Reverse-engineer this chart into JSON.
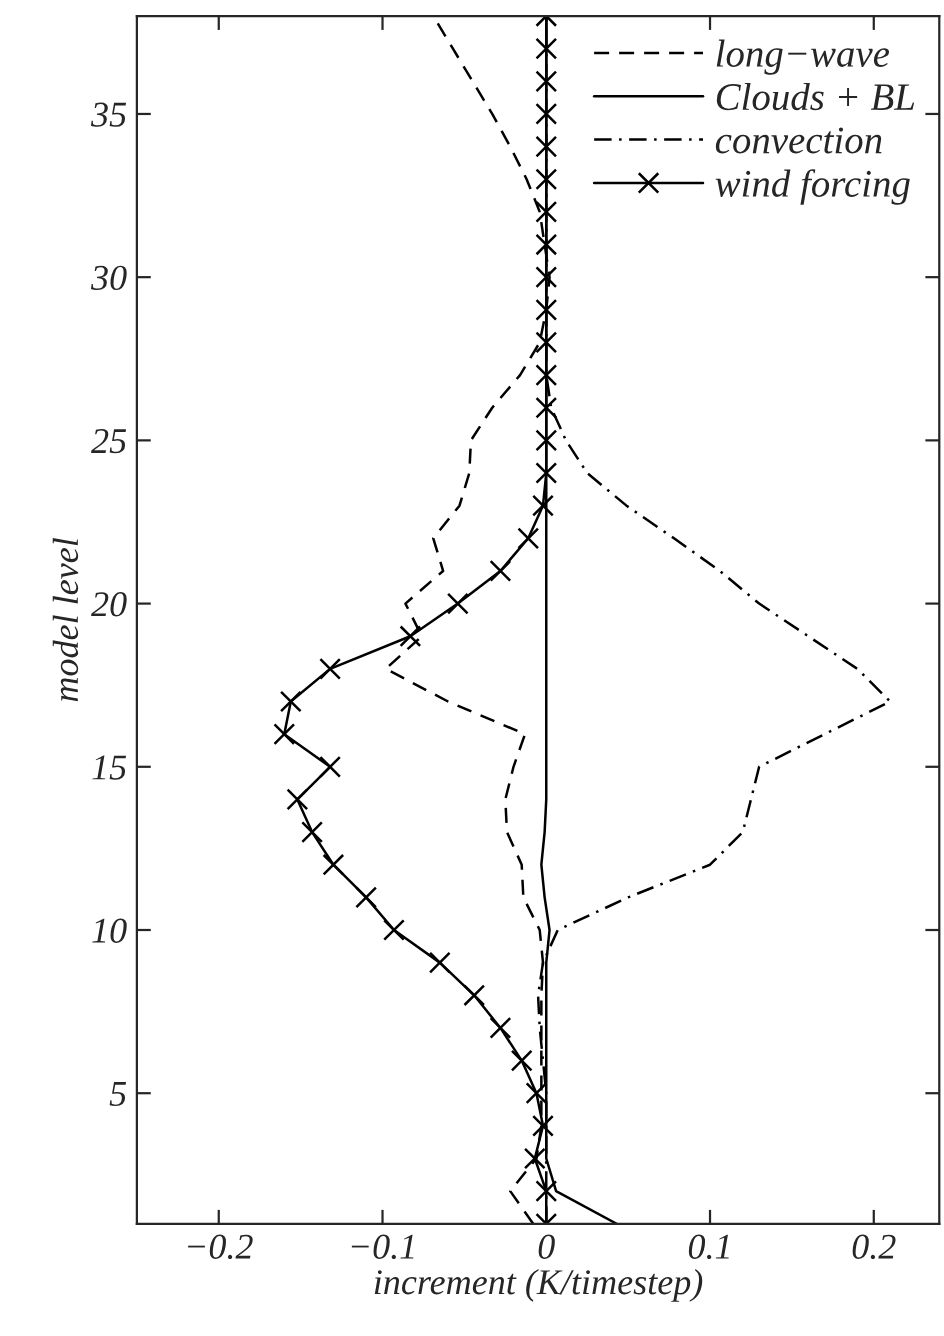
{
  "chart_data": {
    "type": "line",
    "orientation": "horizontal",
    "xlabel": "increment (K/timestep)",
    "ylabel": "model level",
    "x": [
      1,
      2,
      3,
      4,
      5,
      6,
      7,
      8,
      9,
      10,
      11,
      12,
      13,
      14,
      15,
      16,
      17,
      18,
      19,
      20,
      21,
      22,
      23,
      24,
      25,
      26,
      27,
      28,
      29,
      30,
      31,
      32,
      33,
      34,
      35,
      36,
      37,
      38
    ],
    "xlim": [
      -0.25,
      0.24
    ],
    "xticks": [
      {
        "value": -0.2,
        "label": "−0.2"
      },
      {
        "value": -0.1,
        "label": "−0.1"
      },
      0,
      0.1,
      0.2
    ],
    "ylim": [
      1,
      38
    ],
    "yticks": [
      5,
      10,
      15,
      20,
      25,
      30,
      35
    ],
    "grid": false,
    "legend": "top right",
    "series": [
      {
        "name": "long−wave",
        "color": "#000000",
        "line_style": "dashed",
        "marker": "none",
        "values": [
          -0.008,
          -0.022,
          -0.006,
          -0.003,
          -0.003,
          -0.003,
          -0.003,
          -0.003,
          -0.002,
          -0.004,
          -0.014,
          -0.015,
          -0.024,
          -0.025,
          -0.02,
          -0.013,
          -0.06,
          -0.098,
          -0.076,
          -0.086,
          -0.063,
          -0.069,
          -0.053,
          -0.047,
          -0.046,
          -0.033,
          -0.016,
          -0.004,
          0,
          0.002,
          -0.001,
          -0.004,
          -0.012,
          -0.022,
          -0.033,
          -0.045,
          -0.057,
          -0.069
        ]
      },
      {
        "name": "Clouds + BL",
        "color": "#000000",
        "line_style": "solid",
        "marker": "none",
        "values": [
          0.043,
          0.006,
          0,
          0,
          0,
          0,
          0,
          0,
          0,
          0.002,
          -0.001,
          -0.003,
          -0.001,
          0,
          0,
          0,
          0,
          0,
          0,
          0,
          0,
          0,
          0,
          0,
          0,
          0,
          0,
          0,
          0,
          0,
          0,
          0,
          0,
          0,
          0,
          0,
          0,
          0
        ]
      },
      {
        "name": "convection",
        "color": "#000000",
        "line_style": "dashdot",
        "marker": "none",
        "values": [
          0,
          0,
          0,
          0,
          0,
          -0.002,
          -0.004,
          -0.005,
          -0.002,
          0.007,
          0.05,
          0.1,
          0.12,
          0.125,
          0.13,
          0.17,
          0.21,
          0.19,
          0.16,
          0.13,
          0.106,
          0.078,
          0.049,
          0.025,
          0.012,
          0.003,
          0,
          0,
          0,
          0,
          0,
          0,
          0,
          0,
          0,
          0,
          0,
          0
        ]
      },
      {
        "name": "wind forcing",
        "color": "#000000",
        "line_style": "solid",
        "marker": "cross",
        "values": [
          0,
          0,
          -0.007,
          -0.002,
          -0.006,
          -0.015,
          -0.028,
          -0.044,
          -0.065,
          -0.093,
          -0.11,
          -0.13,
          -0.143,
          -0.152,
          -0.132,
          -0.16,
          -0.156,
          -0.132,
          -0.083,
          -0.054,
          -0.028,
          -0.011,
          -0.002,
          0,
          0,
          0,
          0,
          0,
          0,
          0,
          0,
          0,
          0,
          0,
          0,
          0,
          0,
          0
        ]
      }
    ]
  }
}
